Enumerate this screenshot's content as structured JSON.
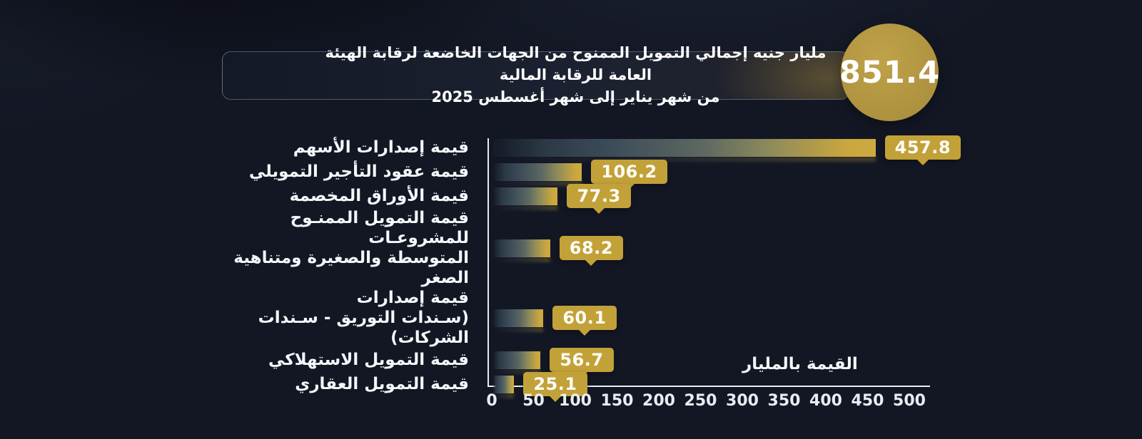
{
  "header": {
    "title_line1": "مليار جنيه إجمالي التمويل الممنوح من الجهات الخاضعة لرقابة الهيئة العامة للرقابة المالية",
    "title_line2": "من شهر يناير إلى شهر أغسطس 2025",
    "total_badge": "851.4"
  },
  "chart_data": {
    "type": "bar",
    "orientation": "horizontal",
    "unit_note": "القيمة بالمليار",
    "categories": [
      "قيمة إصدارات الأسهم",
      "قيمة عقود التأجير التمويلي",
      "قيمة الأوراق المخصمة",
      "قيمة التمويل الممنـوح للمشروعـات\nالمتوسطة والصغيرة ومتناهية الصغر",
      "قيمة إصدارات\n(سـندات التوريق - سـندات الشركات)",
      "قيمة التمويل الاستهلاكي",
      "قيمة التمويل العقاري"
    ],
    "values": [
      457.8,
      106.2,
      77.3,
      68.2,
      60.1,
      56.7,
      25.1
    ],
    "value_labels": [
      "457.8",
      "106.2",
      "77.3",
      "68.2",
      "60.1",
      "56.7",
      "25.1"
    ],
    "x_ticks": [
      "0",
      "50",
      "100",
      "150",
      "200",
      "250",
      "300",
      "350",
      "400",
      "450",
      "500"
    ],
    "xlim": [
      0,
      500
    ],
    "grid": false,
    "legend": false,
    "colors": {
      "background": "#131724",
      "gold_accent": "#c2a138",
      "circle_gold": "#b19440",
      "bar_gradient_start": "#2c3a47",
      "bar_gradient_mid": "#5d6861",
      "bar_gradient_end": "#c9a63e",
      "axis_line": "#e9ecf1",
      "title_border": "#7d8ea6",
      "text": "#ffffff"
    }
  }
}
